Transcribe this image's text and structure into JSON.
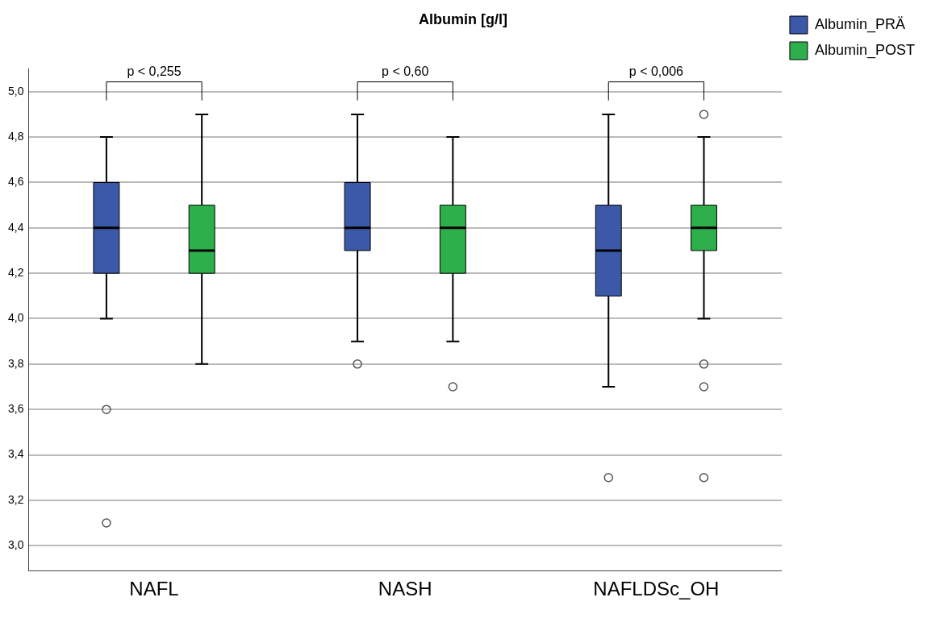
{
  "chart_data": {
    "type": "box",
    "title": "Albumin [g/l]",
    "categories": [
      "NAFL",
      "NASH",
      "NAFLDSc_OH"
    ],
    "series": [
      {
        "name": "Albumin_PRÄ",
        "color": "#3c58a8",
        "boxes": [
          {
            "low": 4.0,
            "q1": 4.2,
            "median": 4.4,
            "q3": 4.6,
            "high": 4.8,
            "outliers": [
              3.6,
              3.1
            ]
          },
          {
            "low": 3.9,
            "q1": 4.3,
            "median": 4.4,
            "q3": 4.6,
            "high": 4.9,
            "outliers": [
              3.8
            ]
          },
          {
            "low": 3.7,
            "q1": 4.1,
            "median": 4.3,
            "q3": 4.5,
            "high": 4.9,
            "outliers": [
              3.3
            ]
          }
        ]
      },
      {
        "name": "Albumin_POST",
        "color": "#2db04b",
        "boxes": [
          {
            "low": 3.8,
            "q1": 4.2,
            "median": 4.3,
            "q3": 4.5,
            "high": 4.9
          },
          {
            "low": 3.9,
            "q1": 4.2,
            "median": 4.4,
            "q3": 4.5,
            "high": 4.8,
            "outliers": [
              3.7
            ]
          },
          {
            "low": 4.0,
            "q1": 4.3,
            "median": 4.4,
            "q3": 4.5,
            "high": 4.8,
            "outliers": [
              4.9,
              3.8,
              3.7,
              3.3
            ]
          }
        ]
      }
    ],
    "ylim": [
      2.89,
      5.1
    ],
    "yticks": [
      {
        "value": 3.0,
        "label": "3,0"
      },
      {
        "value": 3.2,
        "label": "3,2"
      },
      {
        "value": 3.4,
        "label": "3,4"
      },
      {
        "value": 3.6,
        "label": "3,6"
      },
      {
        "value": 3.8,
        "label": "3,8"
      },
      {
        "value": 4.0,
        "label": "4,0"
      },
      {
        "value": 4.2,
        "label": "4,2"
      },
      {
        "value": 4.4,
        "label": "4,4"
      },
      {
        "value": 4.6,
        "label": "4,6"
      },
      {
        "value": 4.8,
        "label": "4,8"
      },
      {
        "value": 5.0,
        "label": "5,0"
      }
    ],
    "grid": "y",
    "legend": "top right",
    "annotations": [
      "p < 0,255",
      "p < 0,60",
      "p < 0,006"
    ]
  }
}
